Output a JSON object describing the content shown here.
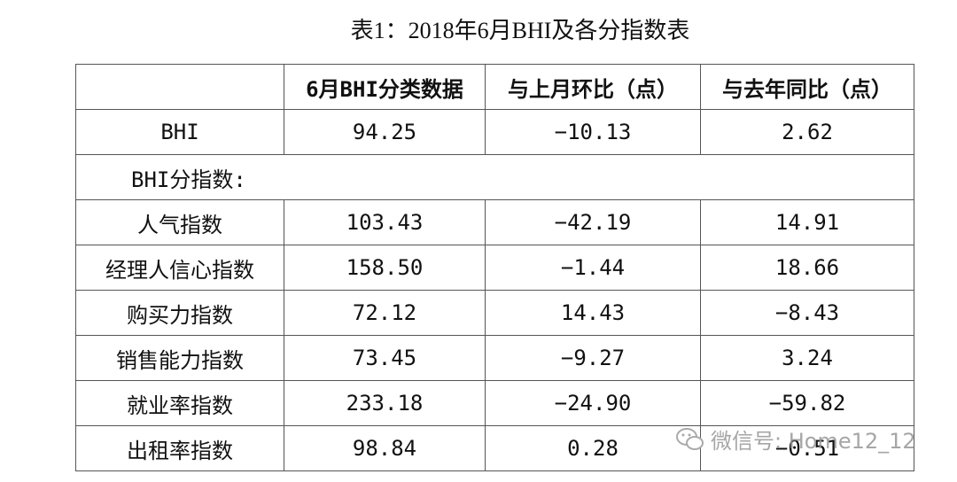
{
  "header": {
    "title": "表1：2018年6月BHI及各分指数表"
  },
  "table": {
    "columns": [
      "",
      "6月BHI分类数据",
      "与上月环比（点）",
      "与去年同比（点）"
    ],
    "rows": [
      [
        "BHI",
        "94.25",
        "−10.13",
        "2.62"
      ],
      [
        "BHI分指数:"
      ],
      [
        "人气指数",
        "103.43",
        "−42.19",
        "14.91"
      ],
      [
        "经理人信心指数",
        "158.50",
        "−1.44",
        "18.66"
      ],
      [
        "购买力指数",
        "72.12",
        "14.43",
        "−8.43"
      ],
      [
        "销售能力指数",
        "73.45",
        "−9.27",
        "3.24"
      ],
      [
        "就业率指数",
        "233.18",
        "−24.90",
        "−59.82"
      ],
      [
        "出租率指数",
        "98.84",
        "0.28",
        "−0.51"
      ]
    ]
  },
  "watermark": {
    "text": "微信号: Home12_12"
  }
}
